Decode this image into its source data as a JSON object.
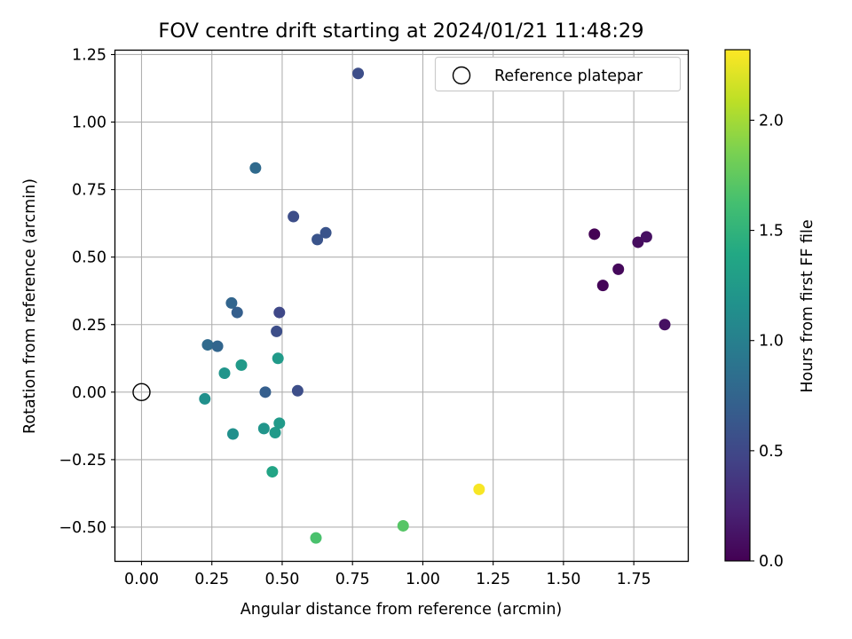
{
  "chart_data": {
    "type": "scatter",
    "title": "FOV centre drift starting at 2024/01/21 11:48:29",
    "xlabel": "Angular distance from reference (arcmin)",
    "ylabel": "Rotation from reference (arcmin)",
    "xlim": [
      -0.093,
      1.942
    ],
    "ylim": [
      -0.625,
      1.268
    ],
    "xticks": [
      "0.00",
      "0.25",
      "0.50",
      "0.75",
      "1.00",
      "1.25",
      "1.50",
      "1.75"
    ],
    "xtick_values": [
      0,
      0.25,
      0.5,
      0.75,
      1.0,
      1.25,
      1.5,
      1.75
    ],
    "yticks": [
      "−0.50",
      "−0.25",
      "0.00",
      "0.25",
      "0.50",
      "0.75",
      "1.00",
      "1.25"
    ],
    "ytick_values": [
      -0.5,
      -0.25,
      0,
      0.25,
      0.5,
      0.75,
      1.0,
      1.25
    ],
    "grid": true,
    "legend": {
      "placement": "top-right",
      "entries": [
        "Reference platepar"
      ]
    },
    "reference_point": {
      "x": 0,
      "y": 0
    },
    "colorbar": {
      "label": "Hours from first FF file",
      "colormap": "viridis",
      "range": [
        0,
        2.32
      ],
      "ticks": [
        "0.0",
        "0.5",
        "1.0",
        "1.5",
        "2.0"
      ],
      "tick_values": [
        0,
        0.5,
        1.0,
        1.5,
        2.0
      ]
    },
    "points": [
      {
        "x": 1.61,
        "y": 0.585,
        "hours": 0.0
      },
      {
        "x": 1.64,
        "y": 0.395,
        "hours": 0.02
      },
      {
        "x": 1.695,
        "y": 0.455,
        "hours": 0.05
      },
      {
        "x": 1.765,
        "y": 0.555,
        "hours": 0.07
      },
      {
        "x": 1.795,
        "y": 0.575,
        "hours": 0.1
      },
      {
        "x": 1.86,
        "y": 0.25,
        "hours": 0.1
      },
      {
        "x": 0.77,
        "y": 1.18,
        "hours": 0.55
      },
      {
        "x": 0.54,
        "y": 0.65,
        "hours": 0.55
      },
      {
        "x": 0.625,
        "y": 0.565,
        "hours": 0.6
      },
      {
        "x": 0.655,
        "y": 0.59,
        "hours": 0.6
      },
      {
        "x": 0.49,
        "y": 0.295,
        "hours": 0.5
      },
      {
        "x": 0.48,
        "y": 0.225,
        "hours": 0.55
      },
      {
        "x": 0.555,
        "y": 0.005,
        "hours": 0.55
      },
      {
        "x": 0.44,
        "y": 0.0,
        "hours": 0.7
      },
      {
        "x": 0.405,
        "y": 0.83,
        "hours": 0.8
      },
      {
        "x": 0.32,
        "y": 0.33,
        "hours": 0.75
      },
      {
        "x": 0.34,
        "y": 0.295,
        "hours": 0.7
      },
      {
        "x": 0.235,
        "y": 0.175,
        "hours": 0.8
      },
      {
        "x": 0.27,
        "y": 0.17,
        "hours": 0.75
      },
      {
        "x": 0.295,
        "y": 0.07,
        "hours": 1.2
      },
      {
        "x": 0.355,
        "y": 0.1,
        "hours": 1.25
      },
      {
        "x": 0.485,
        "y": 0.125,
        "hours": 1.25
      },
      {
        "x": 0.225,
        "y": -0.025,
        "hours": 1.15
      },
      {
        "x": 0.325,
        "y": -0.155,
        "hours": 1.15
      },
      {
        "x": 0.435,
        "y": -0.135,
        "hours": 1.2
      },
      {
        "x": 0.475,
        "y": -0.15,
        "hours": 1.25
      },
      {
        "x": 0.49,
        "y": -0.115,
        "hours": 1.25
      },
      {
        "x": 0.465,
        "y": -0.295,
        "hours": 1.35
      },
      {
        "x": 0.62,
        "y": -0.54,
        "hours": 1.65
      },
      {
        "x": 0.93,
        "y": -0.495,
        "hours": 1.7
      },
      {
        "x": 1.2,
        "y": -0.36,
        "hours": 2.3
      }
    ]
  }
}
